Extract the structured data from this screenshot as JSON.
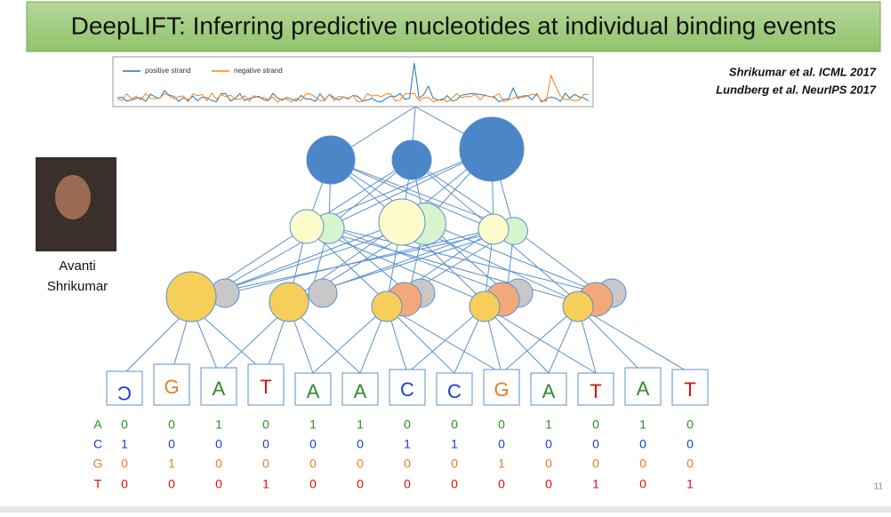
{
  "header": {
    "title": "DeepLIFT: Inferring predictive nucleotides at individual binding events"
  },
  "citations": [
    "Shrikumar et al. ICML 2017",
    "Lundberg et al. NeurIPS 2017"
  ],
  "author": {
    "name": [
      "Avanti",
      "Shrikumar"
    ]
  },
  "inset": {
    "legend": [
      {
        "label": "positive strand",
        "color": "#1f77b4"
      },
      {
        "label": "negative strand",
        "color": "#ff7f0e"
      }
    ]
  },
  "sequence": [
    "C",
    "G",
    "A",
    "T",
    "A",
    "A",
    "C",
    "C",
    "G",
    "A",
    "T",
    "A",
    "T"
  ],
  "one_hot": {
    "rows": [
      {
        "label": "A",
        "color": "#2e8b2e",
        "values": [
          0,
          0,
          1,
          0,
          1,
          1,
          0,
          0,
          0,
          1,
          0,
          1,
          0
        ]
      },
      {
        "label": "C",
        "color": "#1a3fd6",
        "values": [
          1,
          0,
          0,
          0,
          0,
          0,
          1,
          1,
          0,
          0,
          0,
          0,
          0
        ]
      },
      {
        "label": "G",
        "color": "#e67e22",
        "values": [
          0,
          1,
          0,
          0,
          0,
          0,
          0,
          0,
          1,
          0,
          0,
          0,
          0
        ]
      },
      {
        "label": "T",
        "color": "#e01010",
        "values": [
          0,
          0,
          0,
          1,
          0,
          0,
          0,
          0,
          0,
          0,
          1,
          0,
          1
        ]
      }
    ]
  },
  "page_number": "11"
}
